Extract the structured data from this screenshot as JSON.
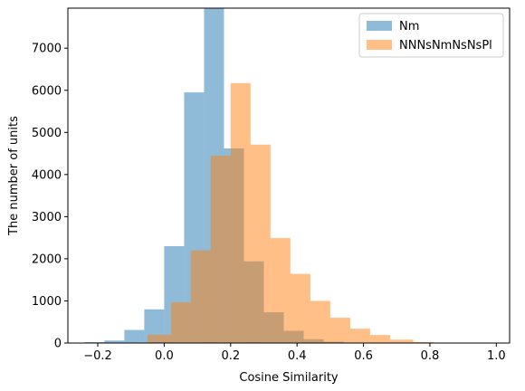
{
  "chart_data": {
    "type": "histogram",
    "title": "",
    "xlabel": "Cosine Similarity",
    "ylabel": "The number of units",
    "xlim": [
      -0.29,
      1.04
    ],
    "ylim": [
      0,
      7950
    ],
    "xticks": [
      -0.2,
      0.0,
      0.2,
      0.4,
      0.6,
      0.8,
      1.0
    ],
    "xtick_labels": [
      "−0.2",
      "0.0",
      "0.2",
      "0.4",
      "0.6",
      "0.8",
      "1.0"
    ],
    "yticks": [
      0,
      1000,
      2000,
      3000,
      4000,
      5000,
      6000,
      7000
    ],
    "ytick_labels": [
      "0",
      "1000",
      "2000",
      "3000",
      "4000",
      "5000",
      "6000",
      "7000"
    ],
    "legend_position": "top-right",
    "series": [
      {
        "name": "Nm",
        "color": "#1f77b4",
        "alpha": 0.5,
        "bins": [
          {
            "x0": -0.24,
            "x1": -0.18,
            "count": 20
          },
          {
            "x0": -0.18,
            "x1": -0.12,
            "count": 60
          },
          {
            "x0": -0.12,
            "x1": -0.06,
            "count": 310
          },
          {
            "x0": -0.06,
            "x1": 0.0,
            "count": 800
          },
          {
            "x0": 0.0,
            "x1": 0.06,
            "count": 2300
          },
          {
            "x0": 0.06,
            "x1": 0.12,
            "count": 5950
          },
          {
            "x0": 0.12,
            "x1": 0.18,
            "count": 8150
          },
          {
            "x0": 0.18,
            "x1": 0.24,
            "count": 4620
          },
          {
            "x0": 0.24,
            "x1": 0.3,
            "count": 1940
          },
          {
            "x0": 0.3,
            "x1": 0.36,
            "count": 730
          },
          {
            "x0": 0.36,
            "x1": 0.42,
            "count": 290
          },
          {
            "x0": 0.42,
            "x1": 0.48,
            "count": 90
          },
          {
            "x0": 0.48,
            "x1": 0.54,
            "count": 30
          }
        ]
      },
      {
        "name": "NNNsNmNsNsPl",
        "color": "#ff7f0e",
        "alpha": 0.5,
        "bins": [
          {
            "x0": -0.05,
            "x1": 0.02,
            "count": 200
          },
          {
            "x0": 0.02,
            "x1": 0.08,
            "count": 970
          },
          {
            "x0": 0.08,
            "x1": 0.14,
            "count": 2200
          },
          {
            "x0": 0.14,
            "x1": 0.2,
            "count": 4450
          },
          {
            "x0": 0.2,
            "x1": 0.26,
            "count": 6170
          },
          {
            "x0": 0.26,
            "x1": 0.32,
            "count": 4710
          },
          {
            "x0": 0.32,
            "x1": 0.38,
            "count": 2490
          },
          {
            "x0": 0.38,
            "x1": 0.44,
            "count": 1640
          },
          {
            "x0": 0.44,
            "x1": 0.5,
            "count": 1000
          },
          {
            "x0": 0.5,
            "x1": 0.56,
            "count": 600
          },
          {
            "x0": 0.56,
            "x1": 0.62,
            "count": 340
          },
          {
            "x0": 0.62,
            "x1": 0.68,
            "count": 190
          },
          {
            "x0": 0.68,
            "x1": 0.75,
            "count": 80
          },
          {
            "x0": 0.75,
            "x1": 0.81,
            "count": 25
          },
          {
            "x0": 0.81,
            "x1": 0.88,
            "count": 10
          }
        ]
      }
    ]
  }
}
